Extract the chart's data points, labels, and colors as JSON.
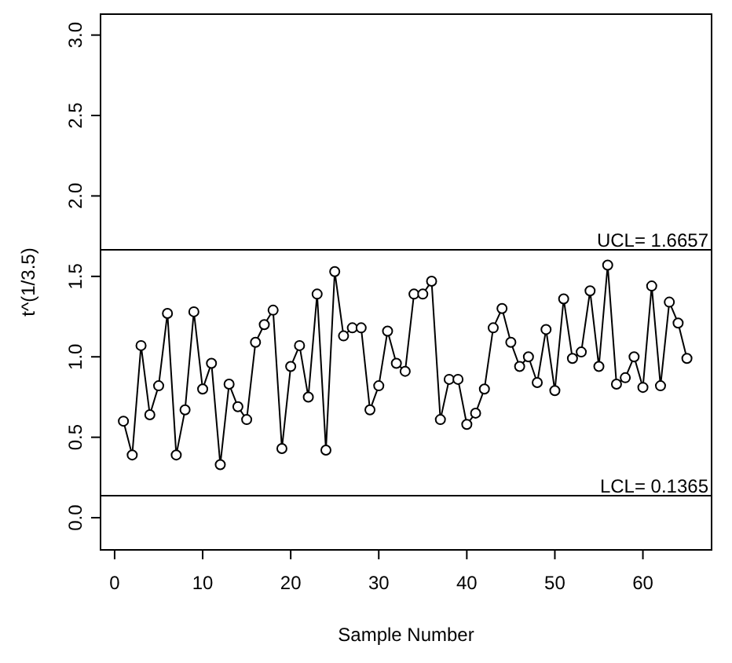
{
  "chart_data": {
    "type": "line",
    "xlabel": "Sample Number",
    "ylabel": "t^(1/3.5)",
    "x": [
      1,
      2,
      3,
      4,
      5,
      6,
      7,
      8,
      9,
      10,
      11,
      12,
      13,
      14,
      15,
      16,
      17,
      18,
      19,
      20,
      21,
      22,
      23,
      24,
      25,
      26,
      27,
      28,
      29,
      30,
      31,
      32,
      33,
      34,
      35,
      36,
      37,
      38,
      39,
      40,
      41,
      42,
      43,
      44,
      45,
      46,
      47,
      48,
      49,
      50,
      51,
      52,
      53,
      54,
      55,
      56,
      57,
      58,
      59,
      60,
      61,
      62,
      63,
      64,
      65
    ],
    "series": [
      {
        "color": "#000000",
        "values": [
          0.6,
          0.39,
          1.07,
          0.64,
          0.82,
          1.27,
          0.39,
          0.67,
          1.28,
          0.8,
          0.96,
          0.33,
          0.83,
          0.69,
          0.61,
          1.09,
          1.2,
          1.29,
          0.43,
          0.94,
          1.07,
          0.75,
          1.39,
          0.42,
          1.53,
          1.13,
          1.18,
          1.18,
          0.67,
          0.82,
          1.16,
          0.96,
          0.91,
          1.39,
          1.39,
          1.47,
          0.61,
          0.86,
          0.86,
          0.58,
          0.65,
          0.8,
          1.18,
          1.3,
          1.09,
          0.94,
          1.0,
          0.84,
          1.17,
          0.79,
          1.36,
          0.99,
          1.03,
          1.41,
          0.94,
          1.57,
          0.83,
          0.87,
          1.0,
          0.81,
          1.44,
          0.82,
          1.34,
          1.21,
          0.99
        ]
      }
    ],
    "xlim": [
      -1.6,
      67.8
    ],
    "xticks": [
      0,
      10,
      20,
      30,
      40,
      50,
      60
    ],
    "ylim": [
      -0.2,
      3.13
    ],
    "yticks": [
      {
        "value": 0,
        "label": "0.0"
      },
      0.5,
      {
        "value": 1,
        "label": "1.0"
      },
      1.5,
      {
        "value": 2,
        "label": "2.0"
      },
      2.5,
      {
        "value": 3,
        "label": "3.0"
      }
    ],
    "ref_lines": [
      {
        "axis": "y",
        "value": 1.6657,
        "label": "UCL= 1.6657"
      },
      {
        "axis": "y",
        "value": 0.1365,
        "label": "LCL= 0.1365"
      }
    ],
    "marker": "circle",
    "line_style": "solid",
    "grid": false
  }
}
